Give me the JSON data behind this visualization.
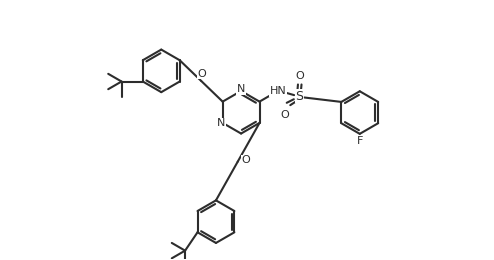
{
  "background_color": "#ffffff",
  "line_color": "#2d2d2d",
  "line_width": 1.5,
  "font_size": 8.0,
  "fig_width": 4.94,
  "fig_height": 2.6,
  "dpi": 100,
  "xlim": [
    -1.0,
    9.5
  ],
  "ylim": [
    -3.2,
    5.5
  ]
}
